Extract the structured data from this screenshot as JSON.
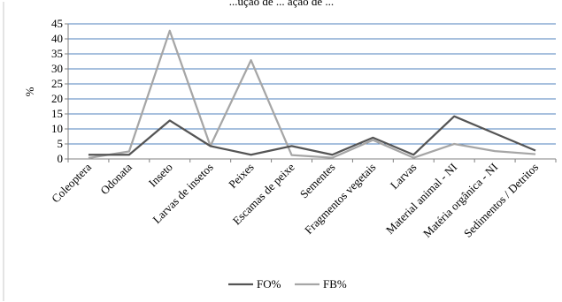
{
  "chart_data": {
    "type": "line",
    "title": "...ução de ... ação de ...",
    "ylabel": "%",
    "xlabel": "",
    "ylim": [
      0,
      45
    ],
    "yticks": [
      0,
      5,
      10,
      15,
      20,
      25,
      30,
      35,
      40,
      45
    ],
    "grid": "horizontal",
    "legend": "bottom",
    "categories": [
      "Coleoptera",
      "Odonata",
      "Inseto",
      "Larvas de insetos",
      "Peixes",
      "Escamas de peixe",
      "Sementes",
      "Fragmentos vegetais",
      "Larvas",
      "Material  animal  - NI",
      "Matéria orgânica  - NI",
      "Sedimentos / Detritos"
    ],
    "series": [
      {
        "name": "FO%",
        "color": "#555555",
        "values": [
          1.4,
          1.4,
          12.8,
          4.3,
          1.4,
          4.3,
          1.4,
          7.1,
          1.4,
          14.2,
          8.5,
          2.8
        ]
      },
      {
        "name": "FB%",
        "color": "#a6a6a6",
        "values": [
          0.3,
          2.5,
          42.7,
          4.3,
          32.9,
          1.3,
          0.4,
          6.3,
          0.4,
          5.0,
          2.6,
          1.6
        ]
      }
    ]
  }
}
